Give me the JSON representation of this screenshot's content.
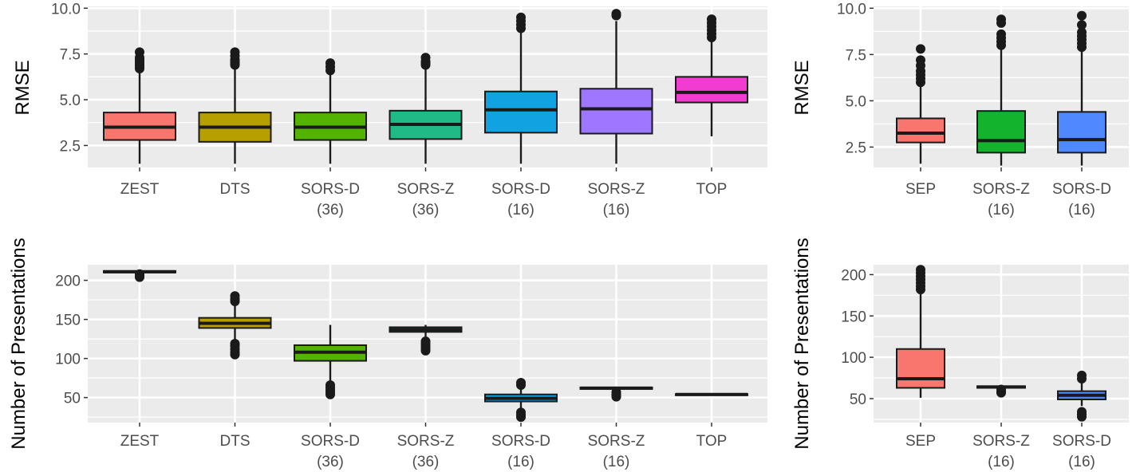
{
  "chart_data": [
    {
      "type": "box",
      "ylabel": "RMSE",
      "yticks": [
        2.5,
        5.0,
        7.5,
        10.0
      ],
      "ytick_labels": [
        "2.5",
        "5.0",
        "7.5",
        "10.0"
      ],
      "ylim": [
        1.3,
        10.1
      ],
      "categories": [
        {
          "line1": "ZEST",
          "line2": ""
        },
        {
          "line1": "DTS",
          "line2": ""
        },
        {
          "line1": "SORS-D",
          "line2": "(36)"
        },
        {
          "line1": "SORS-Z",
          "line2": "(36)"
        },
        {
          "line1": "SORS-D",
          "line2": "(16)"
        },
        {
          "line1": "SORS-Z",
          "line2": "(16)"
        },
        {
          "line1": "TOP",
          "line2": ""
        }
      ],
      "boxes": [
        {
          "color": "#f8766d",
          "low": 1.5,
          "q1": 2.8,
          "median": 3.5,
          "q3": 4.3,
          "high": 6.6,
          "outliers": [
            6.7,
            6.8,
            6.9,
            7.0,
            7.1,
            7.2,
            7.3,
            7.6
          ]
        },
        {
          "color": "#b79f00",
          "low": 1.5,
          "q1": 2.7,
          "median": 3.5,
          "q3": 4.3,
          "high": 6.8,
          "outliers": [
            6.9,
            7.0,
            7.1,
            7.2,
            7.4,
            7.6
          ]
        },
        {
          "color": "#53b400",
          "low": 1.5,
          "q1": 2.8,
          "median": 3.5,
          "q3": 4.3,
          "high": 6.5,
          "outliers": [
            6.6,
            6.8,
            7.0
          ]
        },
        {
          "color": "#1fba85",
          "low": 1.5,
          "q1": 2.85,
          "median": 3.65,
          "q3": 4.4,
          "high": 6.7,
          "outliers": [
            6.9,
            7.0,
            7.1,
            7.3
          ]
        },
        {
          "color": "#11a3e1",
          "low": 1.5,
          "q1": 3.2,
          "median": 4.45,
          "q3": 5.45,
          "high": 8.7,
          "outliers": [
            8.9,
            9.1,
            9.3,
            9.5
          ]
        },
        {
          "color": "#9f76ff",
          "low": 1.5,
          "q1": 3.15,
          "median": 4.5,
          "q3": 5.6,
          "high": 9.3,
          "outliers": [
            9.6,
            9.7
          ]
        },
        {
          "color": "#f03cd1",
          "low": 3.0,
          "q1": 4.85,
          "median": 5.4,
          "q3": 6.25,
          "high": 8.2,
          "outliers": [
            8.4,
            8.6,
            8.8,
            9.0,
            9.2,
            9.4
          ]
        }
      ]
    },
    {
      "type": "box",
      "ylabel": "RMSE",
      "yticks": [
        2.5,
        5.0,
        7.5,
        10.0
      ],
      "ytick_labels": [
        "2.5",
        "5.0",
        "7.5",
        "10.0"
      ],
      "ylim": [
        1.4,
        10.1
      ],
      "categories": [
        {
          "line1": "SEP",
          "line2": ""
        },
        {
          "line1": "SORS-Z",
          "line2": "(16)"
        },
        {
          "line1": "SORS-D",
          "line2": "(16)"
        }
      ],
      "boxes": [
        {
          "color": "#f8766d",
          "low": 1.6,
          "q1": 2.75,
          "median": 3.25,
          "q3": 4.05,
          "high": 5.9,
          "outliers": [
            6.0,
            6.2,
            6.4,
            6.6,
            6.9,
            7.2,
            7.8
          ]
        },
        {
          "color": "#14b32d",
          "low": 1.5,
          "q1": 2.2,
          "median": 2.85,
          "q3": 4.45,
          "high": 7.9,
          "outliers": [
            8.0,
            8.2,
            8.4,
            8.6,
            9.2,
            9.4
          ]
        },
        {
          "color": "#5089ff",
          "low": 1.5,
          "q1": 2.2,
          "median": 2.9,
          "q3": 4.4,
          "high": 7.8,
          "outliers": [
            7.9,
            8.1,
            8.3,
            8.5,
            8.7,
            9.1,
            9.6
          ]
        }
      ]
    },
    {
      "type": "box",
      "ylabel": "Number of Presentations",
      "yticks": [
        50,
        100,
        150,
        200
      ],
      "ytick_labels": [
        "50",
        "100",
        "150",
        "200"
      ],
      "ylim": [
        18,
        220
      ],
      "categories": [
        {
          "line1": "ZEST",
          "line2": ""
        },
        {
          "line1": "DTS",
          "line2": ""
        },
        {
          "line1": "SORS-D",
          "line2": "(36)"
        },
        {
          "line1": "SORS-Z",
          "line2": "(36)"
        },
        {
          "line1": "SORS-D",
          "line2": "(16)"
        },
        {
          "line1": "SORS-Z",
          "line2": "(16)"
        },
        {
          "line1": "TOP",
          "line2": ""
        }
      ],
      "boxes": [
        {
          "color": "#f8766d",
          "low": 209,
          "q1": 210,
          "median": 211,
          "q3": 212,
          "high": 213,
          "outliers": [
            204,
            205,
            206,
            208
          ]
        },
        {
          "color": "#b79f00",
          "low": 122,
          "q1": 139,
          "median": 145,
          "q3": 152,
          "high": 170,
          "outliers": [
            105,
            108,
            112,
            116,
            119,
            173,
            176,
            180
          ]
        },
        {
          "color": "#53b400",
          "low": 68,
          "q1": 97,
          "median": 108,
          "q3": 117,
          "high": 143,
          "outliers": [
            54,
            57,
            60,
            63,
            66
          ]
        },
        {
          "color": "#1fba85",
          "low": 128,
          "q1": 134,
          "median": 137,
          "q3": 140,
          "high": 143,
          "outliers": [
            110,
            113,
            116,
            119,
            122
          ]
        },
        {
          "color": "#11a3e1",
          "low": 35,
          "q1": 45,
          "median": 49,
          "q3": 54,
          "high": 64,
          "outliers": [
            25,
            28,
            31,
            66,
            69
          ]
        },
        {
          "color": "#9f76ff",
          "low": 60,
          "q1": 61,
          "median": 62,
          "q3": 63,
          "high": 64,
          "outliers": [
            51,
            53,
            55,
            57
          ]
        },
        {
          "color": "#f03cd1",
          "low": 53,
          "q1": 53.5,
          "median": 54,
          "q3": 54.5,
          "high": 55,
          "outliers": []
        }
      ]
    },
    {
      "type": "box",
      "ylabel": "Number of Presentations",
      "yticks": [
        50,
        100,
        150,
        200
      ],
      "ytick_labels": [
        "50",
        "100",
        "150",
        "200"
      ],
      "ylim": [
        21,
        212
      ],
      "categories": [
        {
          "line1": "SEP",
          "line2": ""
        },
        {
          "line1": "SORS-Z",
          "line2": "(16)"
        },
        {
          "line1": "SORS-D",
          "line2": "(16)"
        }
      ],
      "boxes": [
        {
          "color": "#f8766d",
          "low": 51,
          "q1": 63,
          "median": 74,
          "q3": 110,
          "high": 178,
          "outliers": [
            182,
            186,
            190,
            194,
            198,
            202,
            206
          ]
        },
        {
          "color": "#14b32d",
          "low": 62,
          "q1": 63,
          "median": 64,
          "q3": 65,
          "high": 66,
          "outliers": [
            57,
            59,
            61
          ]
        },
        {
          "color": "#5089ff",
          "low": 41,
          "q1": 49,
          "median": 54,
          "q3": 59,
          "high": 70,
          "outliers": [
            28,
            31,
            34,
            74,
            78
          ]
        }
      ]
    }
  ]
}
